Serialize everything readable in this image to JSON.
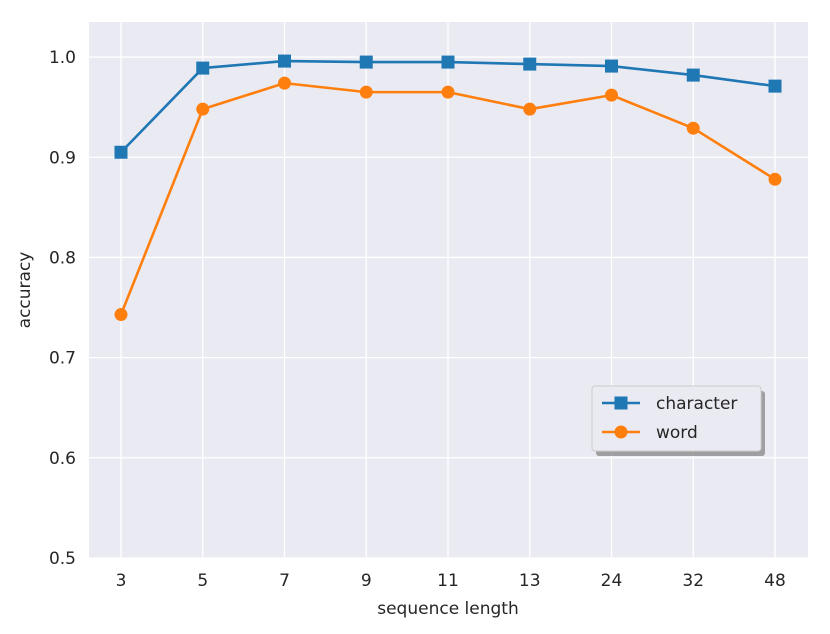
{
  "chart_data": {
    "type": "line",
    "title": "",
    "xlabel": "sequence length",
    "ylabel": "accuracy",
    "categories": [
      "3",
      "5",
      "7",
      "9",
      "11",
      "13",
      "24",
      "32",
      "48"
    ],
    "ylim": [
      0.5,
      1.035
    ],
    "yticks": [
      "0.5",
      "0.6",
      "0.7",
      "0.8",
      "0.9",
      "1.0"
    ],
    "grid": true,
    "legend_position": "lower-right",
    "series": [
      {
        "name": "character",
        "marker": "square",
        "color": "#1f77b4",
        "values": [
          0.905,
          0.989,
          0.996,
          0.995,
          0.995,
          0.993,
          0.991,
          0.982,
          0.971
        ]
      },
      {
        "name": "word",
        "marker": "circle",
        "color": "#ff7f0e",
        "values": [
          0.743,
          0.948,
          0.974,
          0.965,
          0.965,
          0.948,
          0.962,
          0.929,
          0.878
        ]
      }
    ],
    "background_color": "#eaeaf2",
    "grid_color": "#ffffff"
  }
}
